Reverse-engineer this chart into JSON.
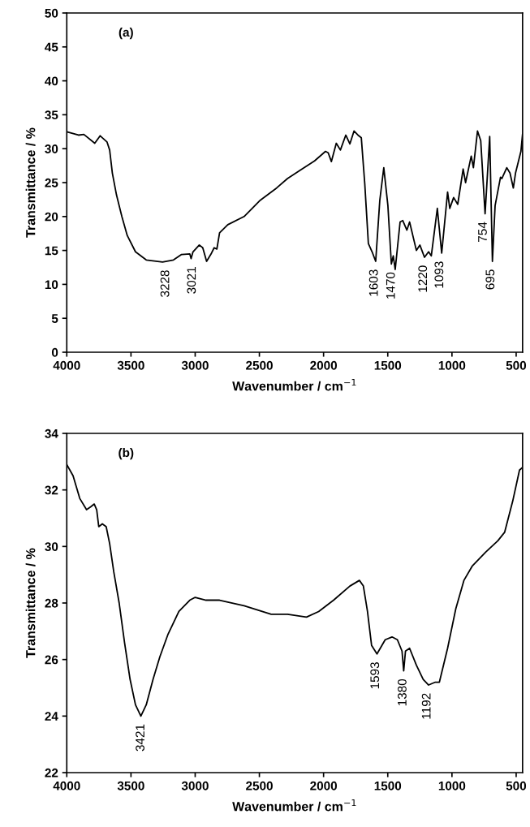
{
  "chart_data": [
    {
      "type": "line",
      "xlabel": "Wavenumber / cm$^{−1}$",
      "ylabel": "Transmittance / %",
      "xlim": [
        4000,
        450
      ],
      "xticks": [
        4000,
        3500,
        3000,
        2500,
        2000,
        1500,
        1000,
        500
      ],
      "ylim": [
        0,
        50
      ],
      "yticks": [
        0,
        5,
        10,
        15,
        20,
        25,
        30,
        35,
        40,
        45,
        50
      ],
      "grid": false,
      "legend": false,
      "x": [
        4000,
        3909,
        3867,
        3782,
        3740,
        3687,
        3666,
        3645,
        3613,
        3571,
        3529,
        3465,
        3381,
        3254,
        3169,
        3106,
        3042,
        3032,
        3017,
        2968,
        2941,
        2911,
        2873,
        2852,
        2831,
        2810,
        2746,
        2619,
        2493,
        2366,
        2281,
        2175,
        2070,
        1985,
        1964,
        1939,
        1901,
        1869,
        1827,
        1795,
        1763,
        1732,
        1706,
        1679,
        1651,
        1622,
        1594,
        1562,
        1531,
        1499,
        1472,
        1457,
        1442,
        1404,
        1383,
        1351,
        1330,
        1277,
        1250,
        1214,
        1182,
        1161,
        1114,
        1080,
        1034,
        1017,
        987,
        955,
        913,
        894,
        850,
        833,
        801,
        776,
        742,
        706,
        685,
        664,
        622,
        611,
        573,
        548,
        522,
        505,
        463,
        450
      ],
      "series": [
        {
          "color": "#000000",
          "values": [
            32.5,
            32.0,
            32.1,
            30.8,
            31.9,
            31.0,
            29.8,
            26.4,
            23.2,
            20.0,
            17.2,
            14.8,
            13.6,
            13.3,
            13.6,
            14.4,
            14.5,
            13.8,
            14.8,
            15.8,
            15.4,
            13.4,
            14.6,
            15.4,
            15.2,
            17.6,
            18.8,
            20.0,
            22.4,
            24.2,
            25.6,
            26.9,
            28.2,
            29.6,
            29.4,
            28.1,
            30.8,
            29.8,
            32.0,
            30.7,
            32.6,
            32.0,
            31.6,
            24.8,
            16.0,
            14.8,
            13.4,
            22.4,
            27.2,
            21.6,
            13.0,
            14.2,
            12.2,
            19.2,
            19.4,
            18.0,
            19.2,
            15.0,
            15.8,
            14.0,
            14.8,
            14.2,
            21.2,
            14.6,
            23.6,
            21.2,
            22.8,
            21.8,
            27.0,
            25.0,
            28.9,
            27.2,
            32.6,
            31.2,
            20.4,
            31.8,
            13.4,
            21.6,
            25.8,
            25.6,
            27.2,
            26.4,
            24.2,
            26.4,
            29.6,
            32.2
          ]
        }
      ],
      "annotations": [
        "(a)",
        {
          "text": "3228",
          "x": 3228,
          "y": 13.3
        },
        {
          "text": "3021",
          "x": 3021,
          "y": 13.8
        },
        {
          "text": "1603",
          "x": 1603,
          "y": 13.4
        },
        {
          "text": "1470",
          "x": 1470,
          "y": 13.0
        },
        {
          "text": "1220",
          "x": 1220,
          "y": 14.0
        },
        {
          "text": "1093",
          "x": 1093,
          "y": 14.6
        },
        {
          "text": "754",
          "x": 754,
          "y": 20.4
        },
        {
          "text": "695",
          "x": 695,
          "y": 13.4
        }
      ]
    },
    {
      "type": "line",
      "xlabel": "Wavenumber / cm$^{−1}$",
      "ylabel": "Transmittance / %",
      "xlim": [
        4000,
        450
      ],
      "xticks": [
        4000,
        3500,
        3000,
        2500,
        2000,
        1500,
        1000,
        500
      ],
      "ylim": [
        22,
        34
      ],
      "yticks": [
        22,
        24,
        26,
        28,
        30,
        32,
        34
      ],
      "grid": false,
      "legend": false,
      "x": [
        4000,
        3951,
        3899,
        3846,
        3814,
        3786,
        3767,
        3751,
        3723,
        3693,
        3666,
        3634,
        3592,
        3550,
        3507,
        3465,
        3423,
        3381,
        3328,
        3275,
        3211,
        3127,
        3042,
        3000,
        2915,
        2810,
        2619,
        2408,
        2281,
        2133,
        2038,
        1922,
        1795,
        1721,
        1690,
        1658,
        1626,
        1584,
        1520,
        1467,
        1425,
        1389,
        1376,
        1362,
        1330,
        1277,
        1224,
        1182,
        1129,
        1098,
        1034,
        970,
        907,
        843,
        738,
        643,
        590,
        527,
        474,
        450
      ],
      "series": [
        {
          "color": "#000000",
          "values": [
            32.9,
            32.5,
            31.7,
            31.3,
            31.4,
            31.5,
            31.3,
            30.7,
            30.8,
            30.7,
            30.1,
            29.1,
            28.0,
            26.6,
            25.3,
            24.4,
            24.0,
            24.4,
            25.3,
            26.1,
            26.9,
            27.7,
            28.1,
            28.2,
            28.1,
            28.1,
            27.9,
            27.6,
            27.6,
            27.5,
            27.7,
            28.1,
            28.6,
            28.8,
            28.6,
            27.7,
            26.5,
            26.2,
            26.7,
            26.8,
            26.7,
            26.3,
            25.6,
            26.3,
            26.4,
            25.8,
            25.3,
            25.1,
            25.2,
            25.2,
            26.4,
            27.8,
            28.8,
            29.3,
            29.8,
            30.2,
            30.5,
            31.6,
            32.7,
            32.8
          ]
        }
      ],
      "annotations": [
        "(b)",
        {
          "text": "3421",
          "x": 3421,
          "y": 24.0
        },
        {
          "text": "1593",
          "x": 1593,
          "y": 26.2
        },
        {
          "text": "1380",
          "x": 1380,
          "y": 25.6
        },
        {
          "text": "1192",
          "x": 1192,
          "y": 25.1
        }
      ]
    }
  ]
}
